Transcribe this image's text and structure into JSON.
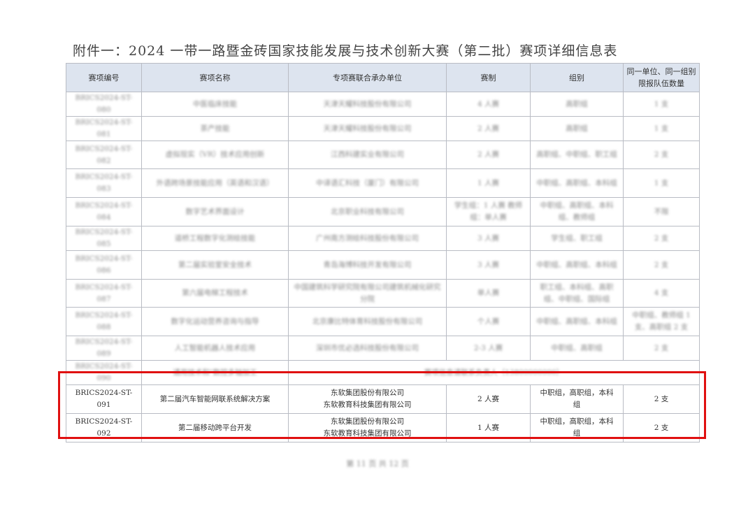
{
  "document": {
    "title": "附件一：2024 一带一路暨金砖国家技能发展与技术创新大赛（第二批）赛项详细信息表",
    "headers": [
      "赛项编号",
      "赛项名称",
      "专项赛联合承办单位",
      "赛制",
      "组别",
      "同一单位、同一组别限报队伍数量"
    ],
    "blurred_rows": [
      [
        "BRICS2024-ST-080",
        "中医临床技能",
        "天津天耀科技股份有限公司",
        "4 人赛",
        "高职组",
        "1 支"
      ],
      [
        "BRICS2024-ST-081",
        "茶产技能",
        "天津天耀科技股份有限公司",
        "2 人赛",
        "高职组",
        "1 支"
      ],
      [
        "BRICS2024-ST-082",
        "虚拟现实（VR）技术应用创新",
        "江西科建实业有限公司",
        "2 人赛",
        "高职组、中职组、职工组",
        "2 支"
      ],
      [
        "BRICS2024-ST-083",
        "外语跨场景技能应用（英语和汉语）",
        "中译语汇科技（厦门）有限公司",
        "1 人赛",
        "中职组、高职组、本科组",
        "1 支"
      ],
      [
        "BRICS2024-ST-084",
        "数字艺术界面设计",
        "北京职业科技有限公司",
        "学生组：1 人赛 教师组：单人赛",
        "中职组、高职组、本科组、教师组",
        "不限"
      ],
      [
        "BRICS2024-ST-085",
        "道桥工程数字化测绘技能",
        "广州南方测绘科技股份有限公司",
        "3 人赛",
        "学生组、职工组",
        "2 支"
      ],
      [
        "BRICS2024-ST-086",
        "第二届实验室安全技术",
        "青岛海博科技开发有限公司",
        "3 人赛",
        "中职组、高职组、本科组",
        "2 支"
      ],
      [
        "BRICS2024-ST-087",
        "第六届电梯工程技术",
        "中国建筑科学研究院有限公司建筑机械化研究分院",
        "单人赛",
        "职工组、本科组、高职组、中职组、国际组",
        "4 支"
      ],
      [
        "BRICS2024-ST-088",
        "数字化运动营养咨询与指导",
        "北京康比特体育科技股份有限公司",
        "个人赛",
        "中职组、高职组、本科组",
        "中职组、教师组 1 支、高职组 2 支"
      ],
      [
        "BRICS2024-ST-089",
        "人工智能机器人技术应用",
        "深圳市优必选科技股份有限公司",
        "2-3 人赛",
        "中职组、高职组",
        "2 支"
      ]
    ],
    "merged_row": {
      "id": "BRICS2024-ST-090",
      "name": "通用技术和\"数控多轴加工",
      "merged": "赛项信息请联系负责人（13800000000）"
    },
    "rows": [
      {
        "id": "BRICS2024-ST-091",
        "name": "第二届汽车智能网联系统解决方案",
        "org1": "东软集团股份有限公司",
        "org2": "东软教育科技集团有限公司",
        "format": "2 人赛",
        "group": "中职组，高职组，本科组",
        "quota": "2 支"
      },
      {
        "id": "BRICS2024-ST-092",
        "name": "第二届移动跨平台开发",
        "org1": "东软集团股份有限公司",
        "org2": "东软教育科技集团有限公司",
        "format": "1 人赛",
        "group": "中职组，高职组，本科组",
        "quota": "2 支"
      }
    ],
    "footer": "第 11 页 共 12 页",
    "highlight_color": "#e01010",
    "header_bg": "#dde4ef"
  }
}
